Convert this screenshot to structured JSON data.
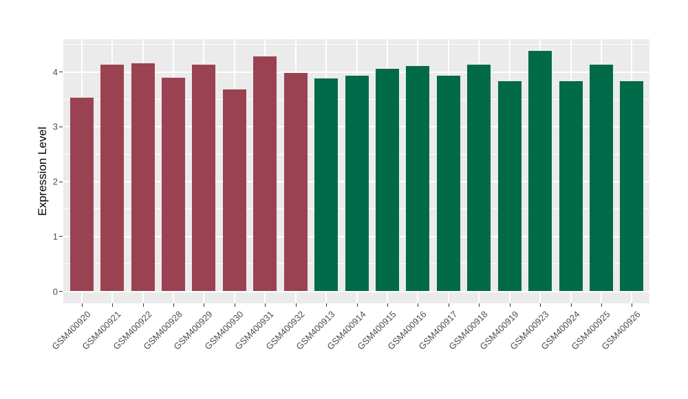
{
  "chart_data": {
    "type": "bar",
    "title": "",
    "xlabel": "",
    "ylabel": "Expression Level",
    "categories": [
      "GSM400920",
      "GSM400921",
      "GSM400922",
      "GSM400928",
      "GSM400929",
      "GSM400930",
      "GSM400931",
      "GSM400932",
      "GSM400913",
      "GSM400914",
      "GSM400915",
      "GSM400916",
      "GSM400917",
      "GSM400918",
      "GSM400919",
      "GSM400923",
      "GSM400924",
      "GSM400925",
      "GSM400926"
    ],
    "values": [
      3.52,
      4.12,
      4.15,
      3.89,
      4.12,
      3.68,
      4.27,
      3.98,
      3.87,
      3.92,
      4.05,
      4.1,
      3.93,
      4.13,
      3.82,
      4.38,
      3.83,
      4.13,
      3.82
    ],
    "groups": [
      0,
      0,
      0,
      0,
      0,
      0,
      0,
      0,
      1,
      1,
      1,
      1,
      1,
      1,
      1,
      1,
      1,
      1,
      1
    ],
    "group_colors": [
      "#9B4252",
      "#016A48"
    ],
    "yticks": [
      0,
      1,
      2,
      3,
      4
    ],
    "minor_yticks": [
      0.5,
      1.5,
      2.5,
      3.5,
      4.5
    ],
    "ylim": [
      0,
      4.6
    ],
    "legend": "none",
    "grid": "on",
    "panel_background": "#EBEBEB",
    "gridline_color": "#FFFFFF",
    "tick_label_color": "#4D4D4D",
    "axis_title_color": "#000000"
  }
}
